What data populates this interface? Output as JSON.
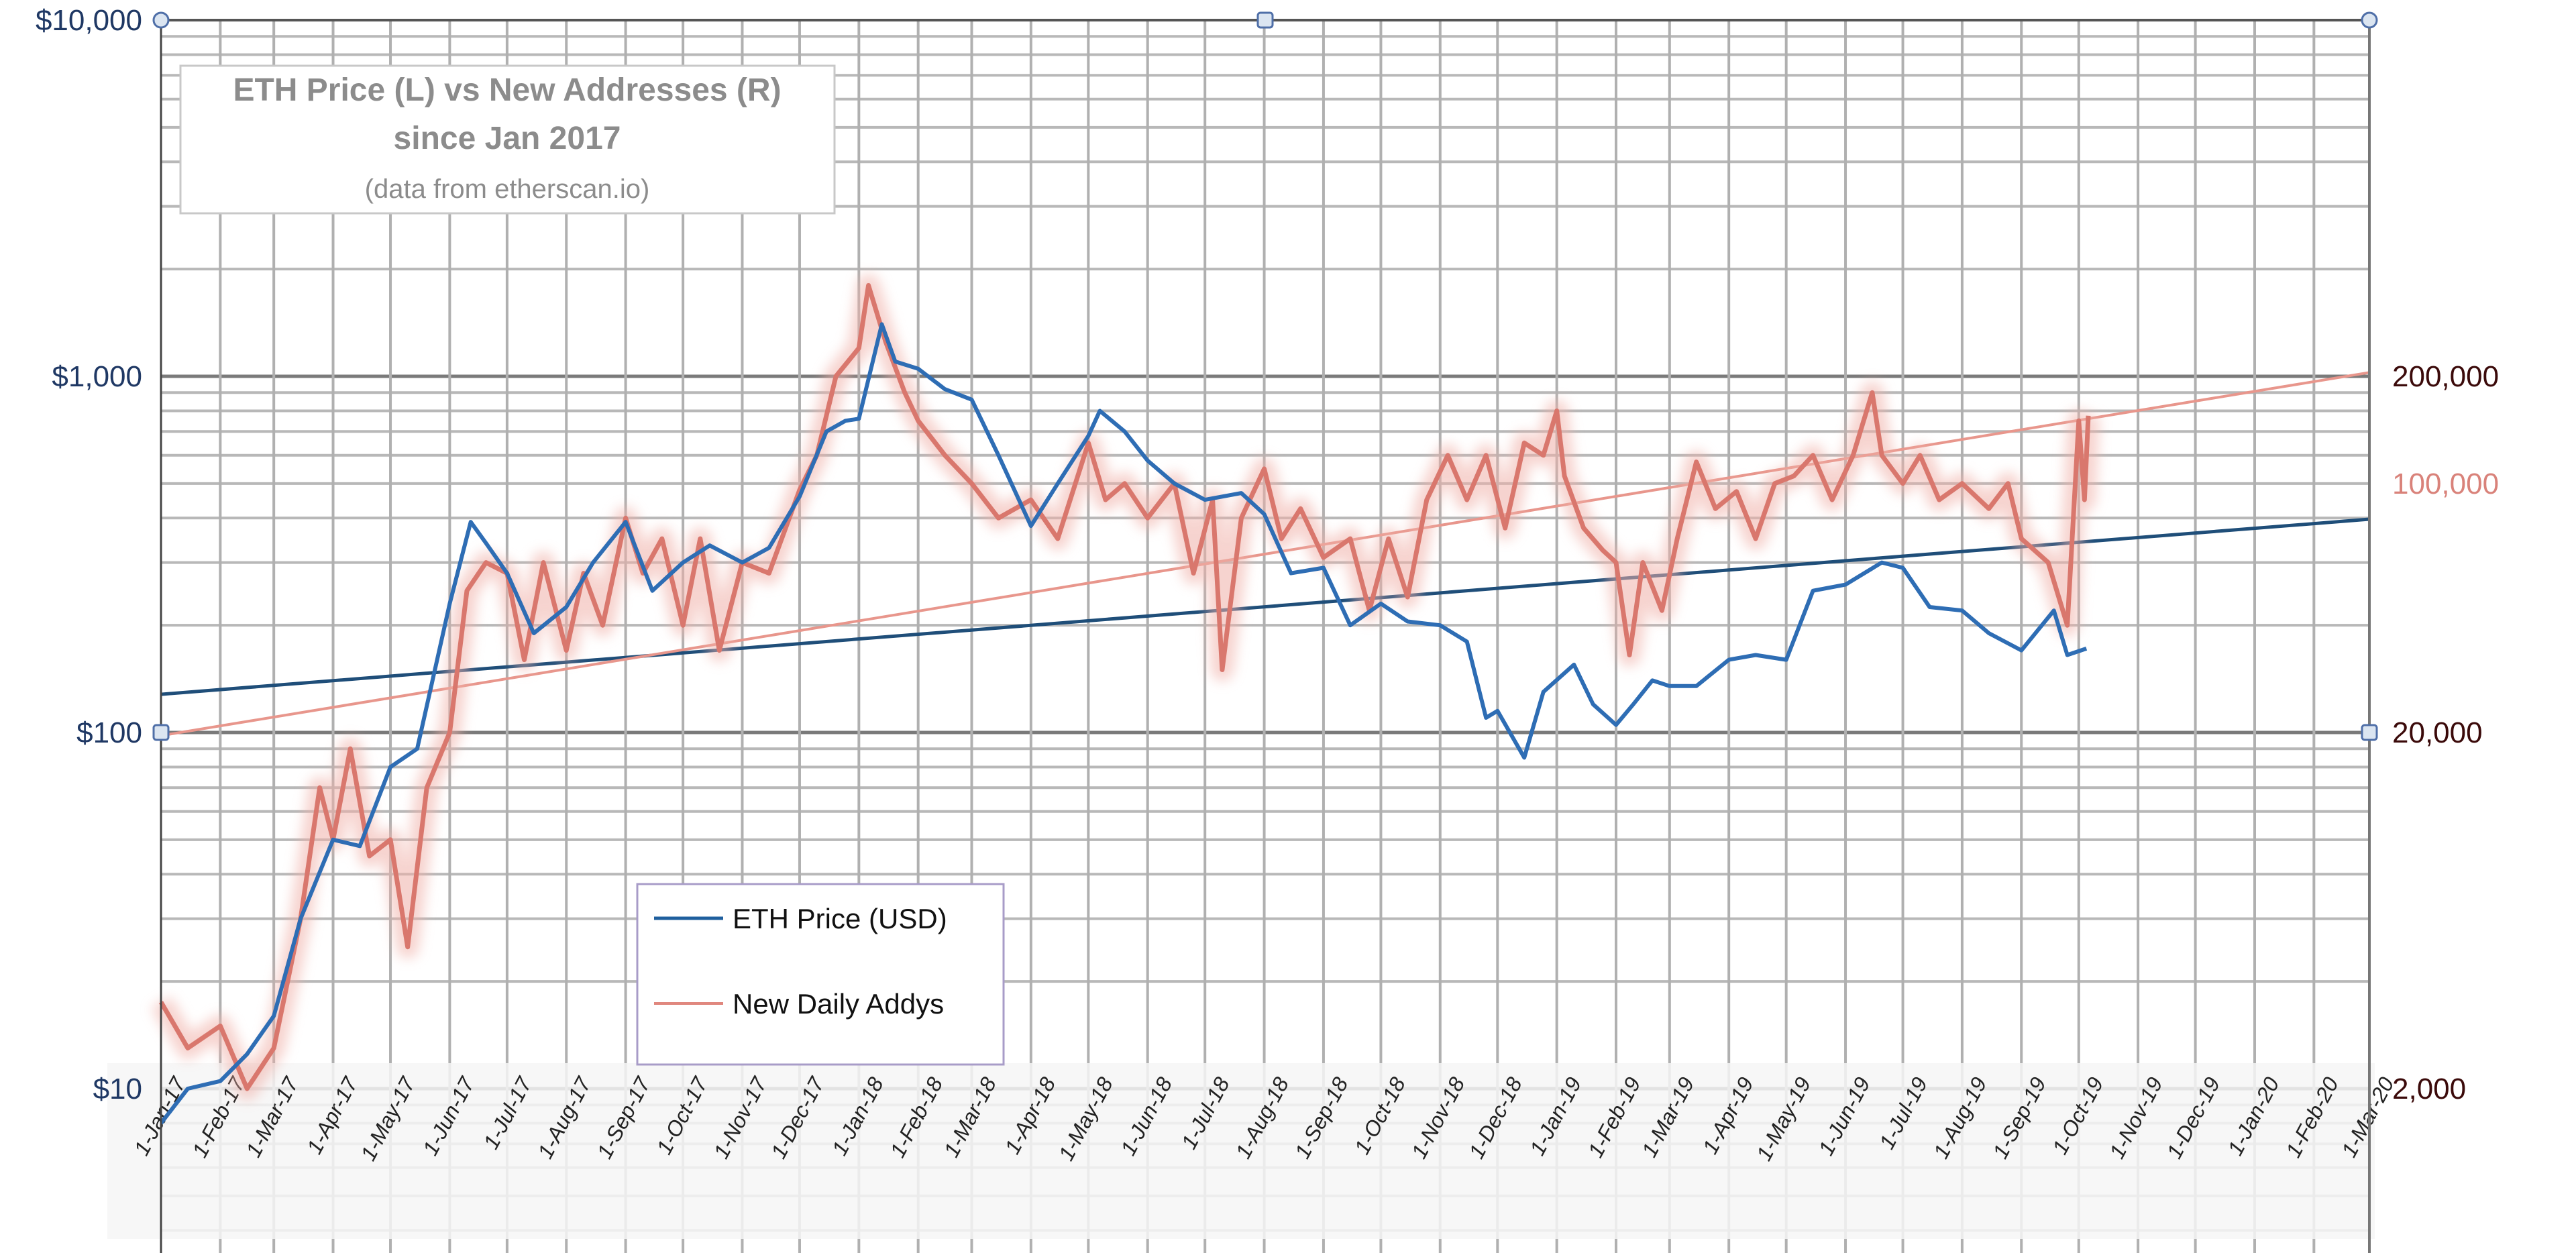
{
  "chart_data": {
    "type": "line",
    "title": {
      "line1": "ETH Price (L) vs New Addresses (R)",
      "line2": "since Jan 2017",
      "line3": "(data from etherscan.io)"
    },
    "legend": {
      "placement": "bottom-center",
      "entries": [
        {
          "label": "ETH Price (USD)",
          "color": "#2e6db4"
        },
        {
          "label": "New Daily Addys",
          "color": "#d9776d"
        }
      ]
    },
    "x_axis": {
      "range": [
        "2017-01-01",
        "2020-03-01"
      ],
      "tick_labels": [
        "1-Jan-17",
        "1-Feb-17",
        "1-Mar-17",
        "1-Apr-17",
        "1-May-17",
        "1-Jun-17",
        "1-Jul-17",
        "1-Aug-17",
        "1-Sep-17",
        "1-Oct-17",
        "1-Nov-17",
        "1-Dec-17",
        "1-Jan-18",
        "1-Feb-18",
        "1-Mar-18",
        "1-Apr-18",
        "1-May-18",
        "1-Jun-18",
        "1-Jul-18",
        "1-Aug-18",
        "1-Sep-18",
        "1-Oct-18",
        "1-Nov-18",
        "1-Dec-18",
        "1-Jan-19",
        "1-Feb-19",
        "1-Mar-19",
        "1-Apr-19",
        "1-May-19",
        "1-Jun-19",
        "1-Jul-19",
        "1-Aug-19",
        "1-Sep-19",
        "1-Oct-19",
        "1-Nov-19",
        "1-Dec-19",
        "1-Jan-20",
        "1-Feb-20",
        "1-Mar-20"
      ],
      "grid": "monthly"
    },
    "y_left": {
      "scale": "log",
      "range": [
        3.4,
        10000
      ],
      "ticks": [
        {
          "value": 10,
          "label": "$10"
        },
        {
          "value": 100,
          "label": "$100"
        },
        {
          "value": 1000,
          "label": "$1,000"
        },
        {
          "value": 10000,
          "label": "$10,000"
        }
      ],
      "color": "#1f3864",
      "grid": true
    },
    "y_right": {
      "scale": "log",
      "range": [
        680,
        2000000
      ],
      "ticks": [
        {
          "value": 2000,
          "label": "2,000",
          "color": "#3b0a0a"
        },
        {
          "value": 20000,
          "label": "20,000",
          "color": "#3b0a0a"
        },
        {
          "value": 100000,
          "label": "100,000",
          "color": "#d9827a"
        },
        {
          "value": 200000,
          "label": "200,000",
          "color": "#3b0a0a"
        }
      ]
    },
    "series": [
      {
        "name": "ETH Price (USD)",
        "axis": "left",
        "color": "#2e6db4",
        "x": [
          "2017-01-01",
          "2017-01-15",
          "2017-02-01",
          "2017-02-15",
          "2017-03-01",
          "2017-03-15",
          "2017-04-01",
          "2017-04-15",
          "2017-05-01",
          "2017-05-15",
          "2017-06-01",
          "2017-06-12",
          "2017-06-20",
          "2017-07-01",
          "2017-07-15",
          "2017-08-01",
          "2017-08-15",
          "2017-09-01",
          "2017-09-15",
          "2017-10-01",
          "2017-10-15",
          "2017-11-01",
          "2017-11-15",
          "2017-12-01",
          "2017-12-15",
          "2017-12-25",
          "2018-01-01",
          "2018-01-13",
          "2018-01-20",
          "2018-02-01",
          "2018-02-15",
          "2018-03-01",
          "2018-03-15",
          "2018-04-01",
          "2018-04-15",
          "2018-05-01",
          "2018-05-07",
          "2018-05-20",
          "2018-06-01",
          "2018-06-15",
          "2018-07-01",
          "2018-07-20",
          "2018-08-01",
          "2018-08-15",
          "2018-09-01",
          "2018-09-15",
          "2018-10-01",
          "2018-10-15",
          "2018-11-01",
          "2018-11-15",
          "2018-11-25",
          "2018-12-01",
          "2018-12-15",
          "2018-12-25",
          "2019-01-10",
          "2019-01-20",
          "2019-02-01",
          "2019-02-10",
          "2019-02-20",
          "2019-03-01",
          "2019-03-15",
          "2019-04-01",
          "2019-04-15",
          "2019-05-01",
          "2019-05-15",
          "2019-06-01",
          "2019-06-20",
          "2019-07-01",
          "2019-07-15",
          "2019-08-01",
          "2019-08-15",
          "2019-09-01",
          "2019-09-18",
          "2019-09-25",
          "2019-10-05"
        ],
        "y": [
          8,
          10,
          10.5,
          12.5,
          16,
          30,
          50,
          48,
          80,
          90,
          230,
          390,
          340,
          280,
          190,
          225,
          300,
          390,
          250,
          300,
          335,
          300,
          330,
          460,
          700,
          750,
          760,
          1400,
          1100,
          1050,
          920,
          860,
          600,
          380,
          500,
          680,
          800,
          700,
          580,
          500,
          450,
          470,
          410,
          280,
          290,
          200,
          230,
          205,
          200,
          180,
          110,
          115,
          85,
          130,
          155,
          120,
          105,
          120,
          140,
          135,
          135,
          160,
          165,
          160,
          250,
          260,
          300,
          290,
          225,
          220,
          190,
          170,
          220,
          165,
          172
        ]
      },
      {
        "name": "New Daily Addys",
        "axis": "right",
        "color": "#d9776d",
        "x": [
          "2017-01-01",
          "2017-01-15",
          "2017-02-01",
          "2017-02-15",
          "2017-03-01",
          "2017-03-15",
          "2017-03-25",
          "2017-04-01",
          "2017-04-10",
          "2017-04-20",
          "2017-05-01",
          "2017-05-10",
          "2017-05-20",
          "2017-06-01",
          "2017-06-10",
          "2017-06-20",
          "2017-07-01",
          "2017-07-10",
          "2017-07-20",
          "2017-08-01",
          "2017-08-10",
          "2017-08-20",
          "2017-09-01",
          "2017-09-10",
          "2017-09-20",
          "2017-10-01",
          "2017-10-10",
          "2017-10-20",
          "2017-11-01",
          "2017-11-15",
          "2017-12-01",
          "2017-12-10",
          "2017-12-20",
          "2018-01-01",
          "2018-01-06",
          "2018-01-15",
          "2018-01-25",
          "2018-02-01",
          "2018-02-15",
          "2018-03-01",
          "2018-03-15",
          "2018-04-01",
          "2018-04-15",
          "2018-05-01",
          "2018-05-10",
          "2018-05-20",
          "2018-06-01",
          "2018-06-15",
          "2018-06-25",
          "2018-07-05",
          "2018-07-10",
          "2018-07-20",
          "2018-08-01",
          "2018-08-10",
          "2018-08-20",
          "2018-09-01",
          "2018-09-15",
          "2018-09-25",
          "2018-10-05",
          "2018-10-15",
          "2018-10-25",
          "2018-11-05",
          "2018-11-15",
          "2018-11-25",
          "2018-12-05",
          "2018-12-15",
          "2018-12-25",
          "2019-01-01",
          "2019-01-05",
          "2019-01-15",
          "2019-01-25",
          "2019-02-01",
          "2019-02-08",
          "2019-02-15",
          "2019-02-25",
          "2019-03-05",
          "2019-03-15",
          "2019-03-25",
          "2019-04-05",
          "2019-04-15",
          "2019-04-25",
          "2019-05-05",
          "2019-05-15",
          "2019-05-25",
          "2019-06-05",
          "2019-06-15",
          "2019-06-20",
          "2019-07-01",
          "2019-07-10",
          "2019-07-20",
          "2019-08-01",
          "2019-08-15",
          "2019-08-25",
          "2019-09-01",
          "2019-09-15",
          "2019-09-25",
          "2019-10-01",
          "2019-10-04",
          "2019-10-06"
        ],
        "y": [
          3500,
          2600,
          3000,
          2000,
          2600,
          6000,
          14000,
          10000,
          18000,
          9000,
          10000,
          5000,
          14000,
          20000,
          50000,
          60000,
          56000,
          32000,
          60000,
          34000,
          56000,
          40000,
          80000,
          56000,
          70000,
          40000,
          70000,
          34000,
          60000,
          56000,
          96000,
          120000,
          200000,
          240000,
          360000,
          250000,
          180000,
          150000,
          120000,
          100000,
          80000,
          90000,
          70000,
          130000,
          90000,
          100000,
          80000,
          100000,
          56000,
          90000,
          30000,
          80000,
          110000,
          70000,
          85000,
          62000,
          70000,
          44000,
          70000,
          48000,
          90000,
          120000,
          90000,
          120000,
          75000,
          130000,
          120000,
          160000,
          105000,
          75000,
          65000,
          60000,
          33000,
          60000,
          44000,
          70000,
          115000,
          85000,
          95000,
          70000,
          100000,
          105000,
          120000,
          90000,
          120000,
          180000,
          120000,
          100000,
          120000,
          90000,
          100000,
          85000,
          100000,
          70000,
          60000,
          40000,
          150000,
          90000,
          155000
        ]
      }
    ],
    "trendlines": [
      {
        "series": "ETH Price (USD)",
        "axis": "left",
        "color": "#1f4e79",
        "start": [
          "2017-01-01",
          128
        ],
        "end": [
          "2020-03-01",
          397
        ]
      },
      {
        "series": "New Daily Addys",
        "axis": "right",
        "color": "#e8968c",
        "start": [
          "2017-01-01",
          19600
        ],
        "end": [
          "2020-03-01",
          205000
        ]
      }
    ]
  }
}
